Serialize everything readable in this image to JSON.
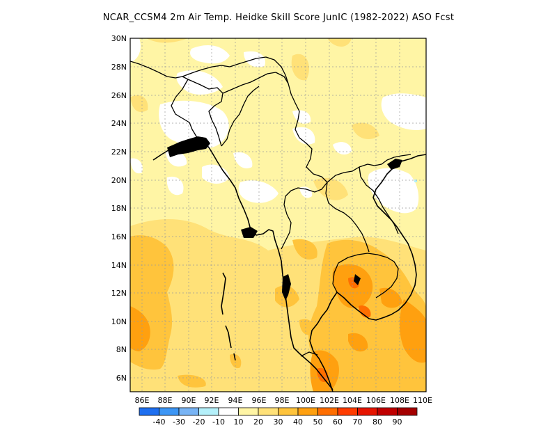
{
  "title": "NCAR_CCSM4  2m Air Temp. Heidke Skill Score JunIC (1982-2022) ASO Fcst",
  "lat_labels": [
    "30N",
    "28N",
    "26N",
    "24N",
    "22N",
    "20N",
    "18N",
    "16N",
    "14N",
    "12N",
    "10N",
    "8N",
    "6N"
  ],
  "lon_labels": [
    "86E",
    "88E",
    "90E",
    "92E",
    "94E",
    "96E",
    "98E",
    "100E",
    "102E",
    "104E",
    "106E",
    "108E",
    "110E"
  ],
  "colorbar": {
    "colors": [
      "#1e6ff0",
      "#3c96f5",
      "#78b4f5",
      "#b4f0fa",
      "#ffffff",
      "#fff5a5",
      "#ffe178",
      "#ffc43c",
      "#ffa00f",
      "#ff6e00",
      "#ff3c00",
      "#e61400",
      "#c00000",
      "#a50000"
    ],
    "labels": [
      "-40",
      "-30",
      "-20",
      "-10",
      "10",
      "20",
      "30",
      "40",
      "50",
      "60",
      "70",
      "80",
      "90"
    ]
  },
  "fill_colors": {
    "white": "#ffffff",
    "c10": "#fff5a5",
    "c20": "#ffe178",
    "c30": "#ffc43c",
    "c40": "#ffa00f",
    "c50": "#ff6e00",
    "c60": "#ff3c00",
    "cyan": "#b4f0fa"
  }
}
